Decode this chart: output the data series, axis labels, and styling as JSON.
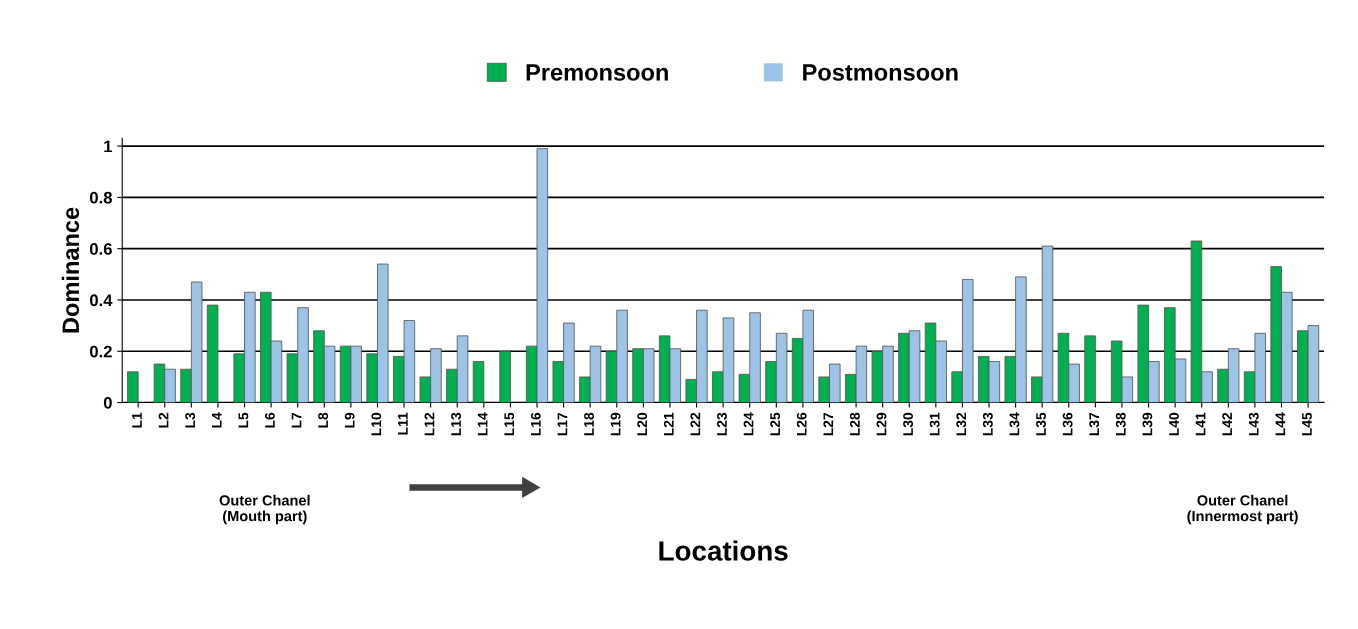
{
  "chart_data": {
    "type": "bar",
    "xlabel": "Locations",
    "ylabel": "Dominance",
    "categories": [
      "L1",
      "L2",
      "L3",
      "L4",
      "L5",
      "L6",
      "L7",
      "L8",
      "L9",
      "L10",
      "L11",
      "L12",
      "L13",
      "L14",
      "L15",
      "L16",
      "L17",
      "L18",
      "L19",
      "L20",
      "L21",
      "L22",
      "L23",
      "L24",
      "L25",
      "L26",
      "L27",
      "L28",
      "L29",
      "L30",
      "L31",
      "L32",
      "L33",
      "L34",
      "L35",
      "L36",
      "L37",
      "L38",
      "L39",
      "L40",
      "L41",
      "L42",
      "L43",
      "L44",
      "L45"
    ],
    "series": [
      {
        "name": "Premonsoon",
        "color": "#00b050",
        "values": [
          0.12,
          0.15,
          0.13,
          0.38,
          0.19,
          0.43,
          0.19,
          0.28,
          0.22,
          0.19,
          0.18,
          0.1,
          0.13,
          0.16,
          0.2,
          0.22,
          0.16,
          0.1,
          0.2,
          0.21,
          0.26,
          0.09,
          0.12,
          0.11,
          0.16,
          0.25,
          0.1,
          0.11,
          0.2,
          0.27,
          0.31,
          0.12,
          0.18,
          0.18,
          0.1,
          0.27,
          0.26,
          0.24,
          0.38,
          0.37,
          0.63,
          0.13,
          0.12,
          0.53,
          0.28
        ]
      },
      {
        "name": "Postmonsoon",
        "color": "#9dc3e6",
        "values": [
          0,
          0.13,
          0.47,
          0,
          0.43,
          0.24,
          0.37,
          0.22,
          0.22,
          0.54,
          0.32,
          0.21,
          0.26,
          0,
          0,
          0.99,
          0.31,
          0.22,
          0.36,
          0.21,
          0.21,
          0.36,
          0.33,
          0.35,
          0.27,
          0.36,
          0.15,
          0.22,
          0.22,
          0.28,
          0.24,
          0.48,
          0.16,
          0.49,
          0.61,
          0.15,
          0,
          0.1,
          0.16,
          0.17,
          0.12,
          0.21,
          0.27,
          0.43,
          0.3
        ]
      }
    ],
    "ylim": [
      0,
      1.03
    ],
    "yticks": [
      0,
      0.2,
      0.4,
      0.6,
      0.8,
      1
    ],
    "grid": "y",
    "legend": "top",
    "annotations": [
      "Outer Chanel\n(Mouth part)",
      "Outer Chanel\n(Innermost part)"
    ]
  }
}
